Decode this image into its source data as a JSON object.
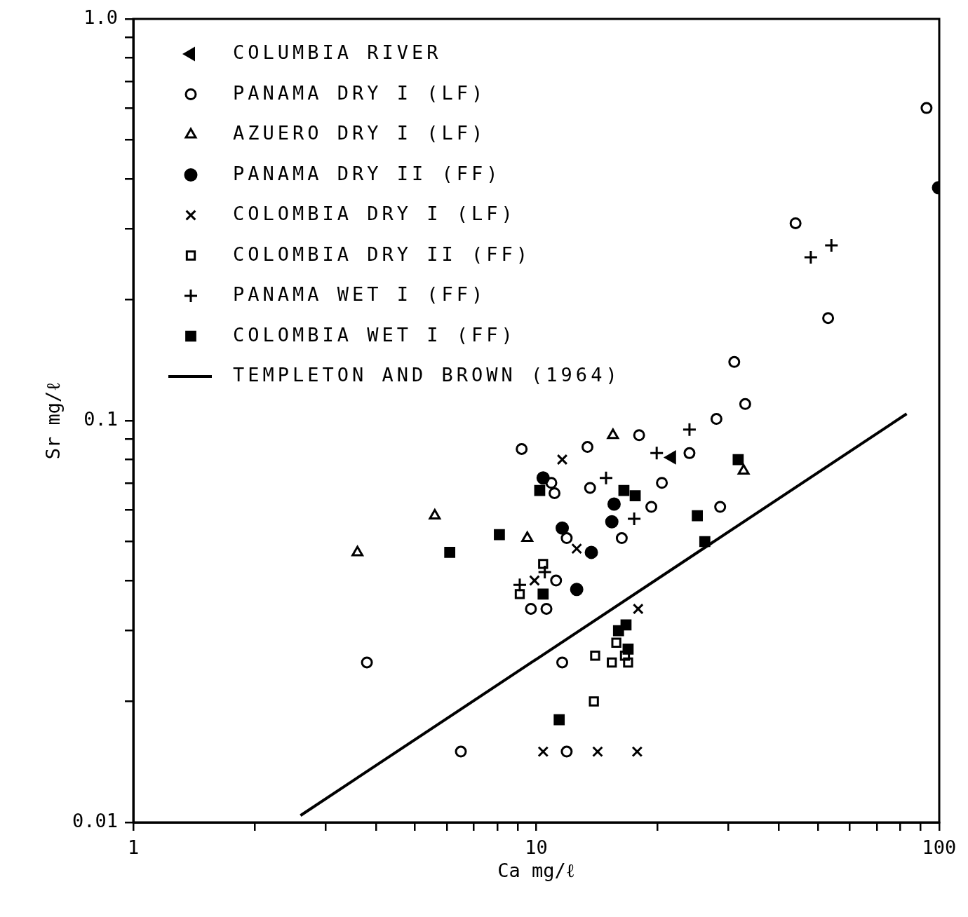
{
  "chart_data": {
    "type": "scatter",
    "xlabel": "Ca mg/ℓ",
    "ylabel": "Sr mg/ℓ",
    "log": "xy",
    "grid": false,
    "legend": "top left",
    "xlim": [
      1,
      100
    ],
    "ylim": [
      0.01,
      1.0
    ],
    "xticks": [
      {
        "value": 1,
        "label": "1"
      },
      {
        "value": 2,
        "label": null
      },
      {
        "value": 3,
        "label": null
      },
      {
        "value": 4,
        "label": null
      },
      {
        "value": 5,
        "label": null
      },
      {
        "value": 6,
        "label": null
      },
      {
        "value": 7,
        "label": null
      },
      {
        "value": 8,
        "label": null
      },
      {
        "value": 9,
        "label": null
      },
      {
        "value": 10,
        "label": "10"
      },
      {
        "value": 20,
        "label": null
      },
      {
        "value": 30,
        "label": null
      },
      {
        "value": 40,
        "label": null
      },
      {
        "value": 50,
        "label": null
      },
      {
        "value": 60,
        "label": null
      },
      {
        "value": 70,
        "label": null
      },
      {
        "value": 80,
        "label": null
      },
      {
        "value": 90,
        "label": null
      },
      {
        "value": 100,
        "label": "100"
      }
    ],
    "yticks": [
      {
        "value": 0.01,
        "label": "0.01"
      },
      {
        "value": 0.02,
        "label": null
      },
      {
        "value": 0.03,
        "label": null
      },
      {
        "value": 0.04,
        "label": null
      },
      {
        "value": 0.05,
        "label": null
      },
      {
        "value": 0.06,
        "label": null
      },
      {
        "value": 0.07,
        "label": null
      },
      {
        "value": 0.08,
        "label": null
      },
      {
        "value": 0.09,
        "label": null
      },
      {
        "value": 0.1,
        "label": "0.1"
      },
      {
        "value": 0.2,
        "label": null
      },
      {
        "value": 0.3,
        "label": null
      },
      {
        "value": 0.4,
        "label": null
      },
      {
        "value": 0.5,
        "label": null
      },
      {
        "value": 0.6,
        "label": null
      },
      {
        "value": 0.7,
        "label": null
      },
      {
        "value": 0.8,
        "label": null
      },
      {
        "value": 0.9,
        "label": null
      },
      {
        "value": 1.0,
        "label": "1.0"
      }
    ],
    "series": [
      {
        "name": "COLUMBIA RIVER",
        "color": "#000000",
        "marker": "triangle-left",
        "x": [
          21.7
        ],
        "values": [
          0.081
        ]
      },
      {
        "name": "PANAMA DRY I (LF)",
        "color": "#000000",
        "marker": "circle-open",
        "x": [
          9.2,
          13.4,
          18,
          24,
          28,
          31,
          33,
          44,
          53,
          93,
          10.9,
          11.1,
          13.6,
          20.5,
          19.3,
          28.6,
          16.3,
          11.9,
          11.2,
          9.7,
          10.6,
          3.8,
          11.6,
          6.5,
          11.9
        ],
        "values": [
          0.085,
          0.086,
          0.092,
          0.083,
          0.101,
          0.14,
          0.11,
          0.31,
          0.18,
          0.6,
          0.07,
          0.066,
          0.068,
          0.07,
          0.061,
          0.061,
          0.051,
          0.051,
          0.04,
          0.034,
          0.034,
          0.025,
          0.025,
          0.015,
          0.015
        ]
      },
      {
        "name": "AZUERO DRY I (LF)",
        "color": "#000000",
        "marker": "triangle-open",
        "x": [
          3.6,
          5.6,
          9.5,
          15.5,
          32.7
        ],
        "values": [
          0.047,
          0.058,
          0.051,
          0.092,
          0.075
        ]
      },
      {
        "name": "PANAMA DRY II (FF)",
        "color": "#000000",
        "marker": "circle",
        "x": [
          10.4,
          15.6,
          11.6,
          15.4,
          13.7,
          12.6,
          99.6
        ],
        "values": [
          0.072,
          0.062,
          0.054,
          0.056,
          0.047,
          0.038,
          0.38
        ]
      },
      {
        "name": "COLOMBIA DRY I (LF)",
        "color": "#000000",
        "marker": "x",
        "x": [
          11.6,
          12.6,
          9.9,
          17.9,
          10.4,
          14.2,
          17.8
        ],
        "values": [
          0.08,
          0.048,
          0.04,
          0.034,
          0.015,
          0.015,
          0.015
        ]
      },
      {
        "name": "COLOMBIA DRY II (FF)",
        "color": "#000000",
        "marker": "square-open",
        "x": [
          10.4,
          9.1,
          15.8,
          14.0,
          15.4,
          16.6,
          16.9,
          13.9
        ],
        "values": [
          0.044,
          0.037,
          0.028,
          0.026,
          0.025,
          0.026,
          0.025,
          0.02
        ]
      },
      {
        "name": "PANAMA WET I (FF)",
        "color": "#000000",
        "marker": "cross",
        "x": [
          9.1,
          10.5,
          14.9,
          17.5,
          19.9,
          24.0,
          48,
          54
        ],
        "values": [
          0.039,
          0.042,
          0.072,
          0.057,
          0.083,
          0.095,
          0.255,
          0.273
        ]
      },
      {
        "name": "COLOMBIA WET I (FF)",
        "color": "#000000",
        "marker": "square",
        "x": [
          6.1,
          8.1,
          10.2,
          16.5,
          17.6,
          10.4,
          25.1,
          26.2,
          31.7,
          16.0,
          16.7,
          16.9,
          11.4
        ],
        "values": [
          0.047,
          0.052,
          0.067,
          0.067,
          0.065,
          0.037,
          0.058,
          0.05,
          0.08,
          0.03,
          0.031,
          0.027,
          0.018
        ]
      },
      {
        "name": "TEMPLETON AND BROWN (1964)",
        "color": "#000000",
        "type": "line",
        "marker": "none",
        "x": [
          2.6,
          83
        ],
        "values": [
          0.0104,
          0.104
        ]
      }
    ]
  }
}
